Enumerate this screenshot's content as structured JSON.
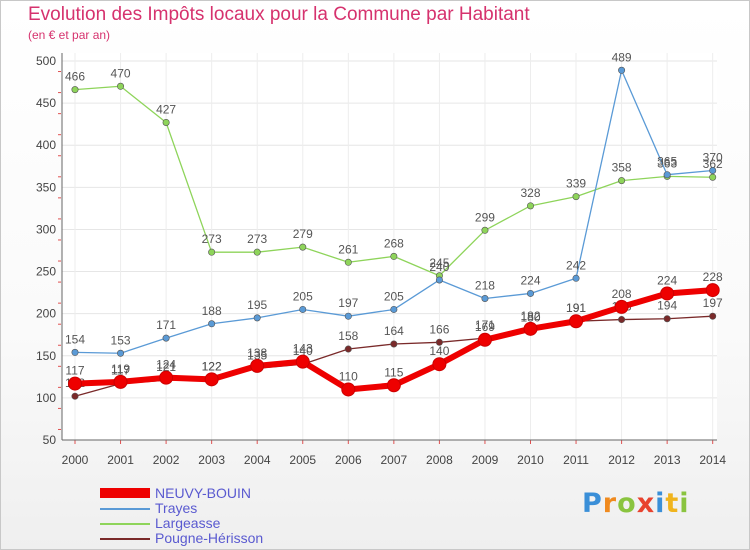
{
  "chart_data": {
    "type": "line",
    "title": "Evolution des Impôts locaux pour la Commune par Habitant",
    "subtitle": "(en € et par an)",
    "x": [
      "2000",
      "2001",
      "2002",
      "2003",
      "2004",
      "2005",
      "2006",
      "2007",
      "2008",
      "2009",
      "2010",
      "2011",
      "2012",
      "2013",
      "2014"
    ],
    "ylim": [
      50,
      500
    ],
    "yticks": [
      50,
      100,
      150,
      200,
      250,
      300,
      350,
      400,
      450,
      500
    ],
    "grid": true,
    "legend_position": "bottom-left",
    "series": [
      {
        "name": "Largeasse",
        "color": "#8ed45a",
        "values": [
          466,
          470,
          427,
          273,
          273,
          279,
          261,
          268,
          245,
          299,
          328,
          339,
          358,
          363,
          362
        ]
      },
      {
        "name": "Trayes",
        "color": "#5a9ad6",
        "values": [
          154,
          153,
          171,
          188,
          195,
          205,
          197,
          205,
          240,
          218,
          224,
          242,
          489,
          365,
          370
        ]
      },
      {
        "name": "Pougne-Hérisson",
        "color": "#7a2a2a",
        "values": [
          102,
          117,
          121,
          122,
          135,
          140,
          158,
          164,
          166,
          171,
          180,
          191,
          193,
          194,
          197
        ]
      },
      {
        "name": "NEUVY-BOUIN",
        "color": "#ee0000",
        "values": [
          117,
          119,
          124,
          122,
          138,
          143,
          110,
          115,
          140,
          169,
          182,
          191,
          208,
          224,
          228
        ]
      }
    ]
  },
  "legend": {
    "items": [
      "NEUVY-BOUIN",
      "Trayes",
      "Largeasse",
      "Pougne-Hérisson"
    ]
  },
  "logo": {
    "letters": [
      "P",
      "r",
      "o",
      "x",
      "i",
      "t",
      "i"
    ]
  }
}
